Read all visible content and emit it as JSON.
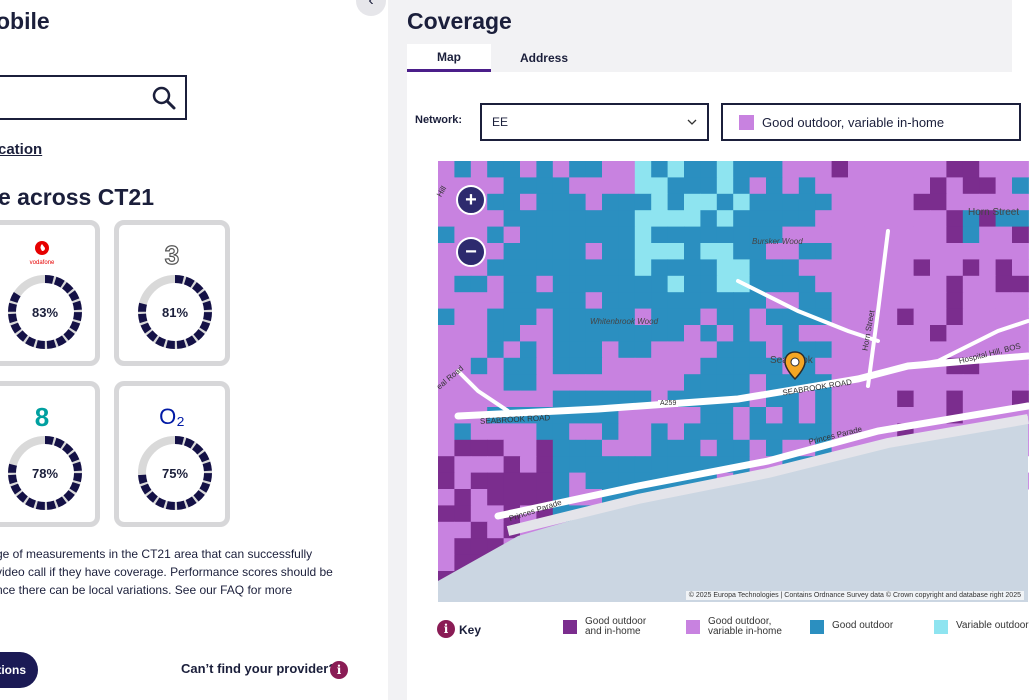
{
  "left": {
    "title": "obile",
    "search_value": "",
    "location_link": "cation",
    "section_title": "e across CT21",
    "providers": [
      {
        "name": "Vodafone",
        "logo_text": "vodafone",
        "pct": "83%",
        "value": 83,
        "color": "#e60000"
      },
      {
        "name": "Three",
        "logo_text": "3",
        "pct": "81%",
        "value": 81,
        "color": "#333333"
      },
      {
        "name": "EE",
        "logo_text": "8",
        "pct": "78%",
        "value": 78,
        "color": "#00a0a0"
      },
      {
        "name": "O2",
        "logo_text": "O₂",
        "pct": "75%",
        "value": 75,
        "color": "#0019a5"
      }
    ],
    "description_line1": "ge of measurements in the CT21 area that can successfully",
    "description_line2": "video call if they have coverage. Performance scores should be",
    "description_line3": "nce there can be local variations. See our FAQ for more",
    "options_button": "tions",
    "cant_find": "Can’t find your provider?"
  },
  "right": {
    "title": "Coverage",
    "tabs": [
      {
        "label": "Map",
        "active": true
      },
      {
        "label": "Address",
        "active": false
      }
    ],
    "network_label": "Network:",
    "network_value": "EE",
    "legend_value": "Good outdoor, variable in-home",
    "map_labels": {
      "burrow_wood": "Bursker Wood",
      "whitenbrook_wood": "Whitenbrook Wood",
      "hurn_street": "Horn Street",
      "seabrook": "Seabrook",
      "seabrook_road_left": "SEABROOK ROAD",
      "seabrook_road_right": "SEABROOK ROAD",
      "a259": "A259",
      "princes_parade": "Princes Parade",
      "princes_parade_left": "Princes Parade",
      "hospital_hill": "Hospital Hill, BOS",
      "hurn_street_vertical": "Horn Street",
      "left_road": "eal Road",
      "hill_top": "Hill"
    },
    "attribution": "© 2025 Europa Technologies | Contains Ordnance Survey data © Crown copyright and database right 2025",
    "zoom_in": "+",
    "zoom_out": "−",
    "key_label": "Key",
    "key_items": [
      {
        "line1": "Good outdoor",
        "line2": "and in-home",
        "color": "#7b2d8e"
      },
      {
        "line1": "Good outdoor,",
        "line2": "variable in-home",
        "color": "#c882e0"
      },
      {
        "line1": "Good outdoor",
        "line2": "",
        "color": "#2b8fc0"
      },
      {
        "line1": "Variable outdoor",
        "line2": "",
        "color": "#8ee4f0"
      }
    ]
  }
}
